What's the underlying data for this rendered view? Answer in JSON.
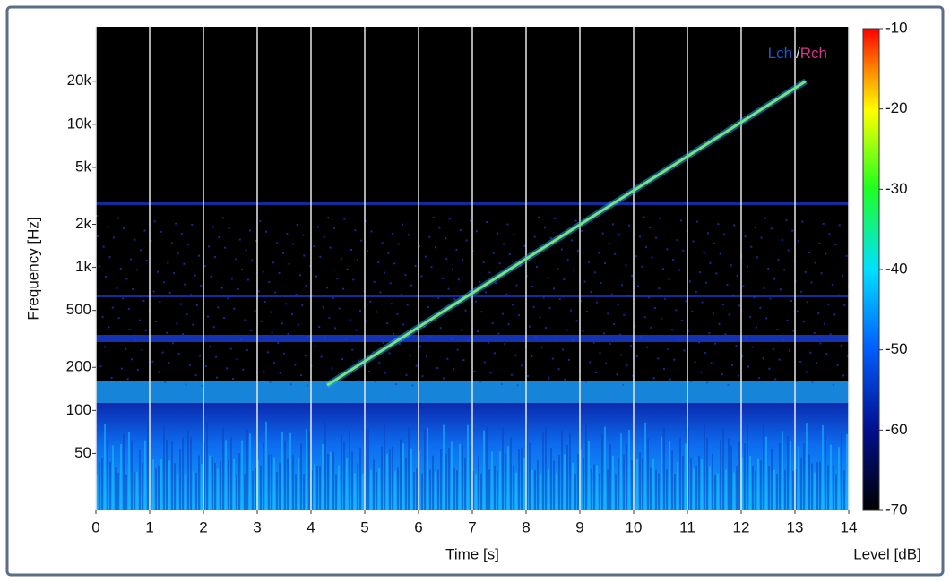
{
  "chart_data": {
    "type": "spectrogram",
    "xlabel": "Time [s]",
    "ylabel": "Frequency [Hz]",
    "xlim": [
      0,
      14
    ],
    "xticks": [
      0,
      1,
      2,
      3,
      4,
      5,
      6,
      7,
      8,
      9,
      10,
      11,
      12,
      13,
      14
    ],
    "ylim": [
      20,
      48000
    ],
    "ylog": true,
    "yticks": [
      50,
      100,
      200,
      500,
      {
        "value": 1000,
        "label": "1k"
      },
      {
        "value": 2000,
        "label": "2k"
      },
      {
        "value": 5000,
        "label": "5k"
      },
      {
        "value": 10000,
        "label": "10k"
      },
      {
        "value": 20000,
        "label": "20k"
      }
    ],
    "grid": true,
    "legend": [
      {
        "name": "Lch",
        "color": "#1a57d0"
      },
      {
        "name": "Rch",
        "color": "#d8338a"
      }
    ],
    "legend_separator": "/",
    "sweep": {
      "x": [
        4.3,
        13.2
      ],
      "values": [
        150,
        20000
      ],
      "color": "#7de07a"
    },
    "colorbar": {
      "label": "Level [dB]",
      "lim": [
        -70,
        -10
      ],
      "ticks": [
        -10,
        -20,
        -30,
        -40,
        -50,
        -60,
        -70
      ]
    }
  }
}
